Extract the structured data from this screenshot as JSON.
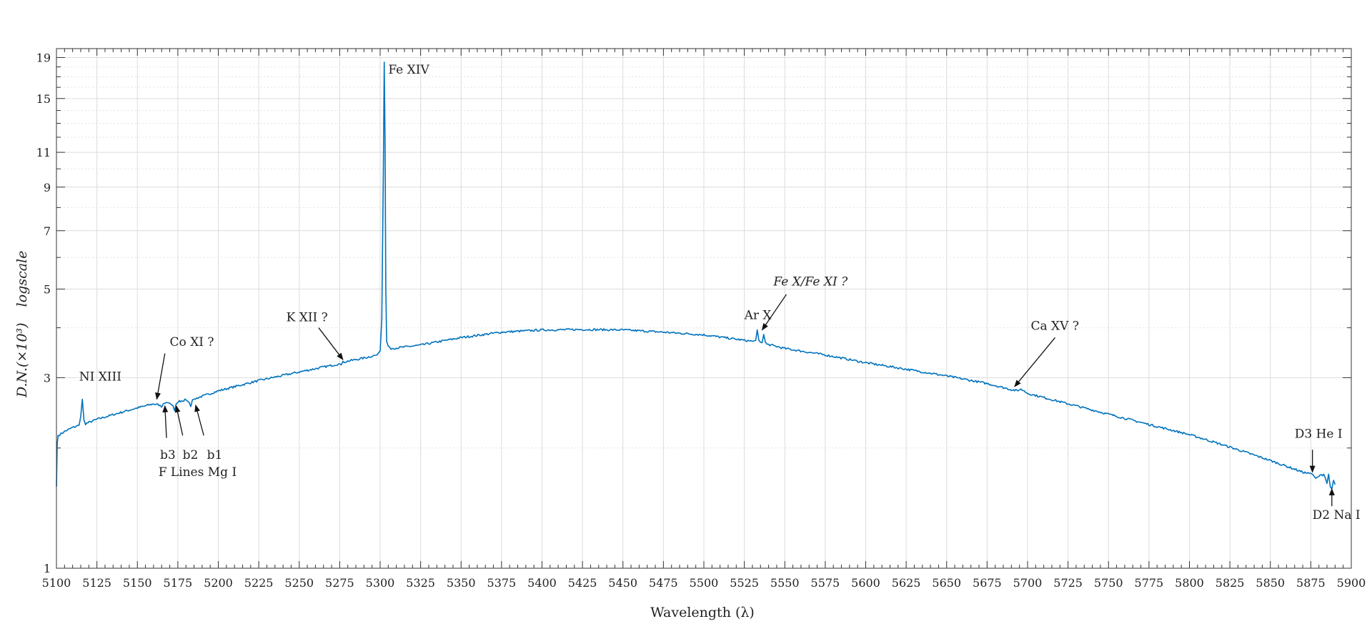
{
  "chart_data": {
    "type": "line",
    "title": "",
    "xlabel": "Wavelength (λ)",
    "ylabel": "D.N.(×10³)",
    "ylabel_secondary": "logscale",
    "x_scale": "linear",
    "y_scale": "log",
    "xlim": [
      5100,
      5900
    ],
    "ylim": [
      1,
      20
    ],
    "grid": true,
    "legend": "none",
    "color": "#0072BD",
    "x_ticks": [
      5100,
      5125,
      5150,
      5175,
      5200,
      5225,
      5250,
      5275,
      5300,
      5325,
      5350,
      5375,
      5400,
      5425,
      5450,
      5475,
      5500,
      5525,
      5550,
      5575,
      5600,
      5625,
      5650,
      5675,
      5700,
      5725,
      5750,
      5775,
      5800,
      5825,
      5850,
      5875,
      5900
    ],
    "y_ticks": [
      1,
      3,
      5,
      7,
      9,
      11,
      15,
      19
    ],
    "series": [
      {
        "x": [
          5100,
          5100.5,
          5101,
          5102,
          5105,
          5110,
          5114,
          5115,
          5116,
          5117,
          5118,
          5125,
          5150,
          5160,
          5164,
          5165,
          5166,
          5168,
          5170,
          5172,
          5173,
          5174,
          5176,
          5180,
          5182,
          5183,
          5184,
          5186,
          5200,
          5225,
          5250,
          5270,
          5275,
          5276,
          5277,
          5280,
          5290,
          5298,
          5300,
          5301,
          5302,
          5302.5,
          5303,
          5303.5,
          5304,
          5305,
          5306,
          5310,
          5325,
          5350,
          5375,
          5400,
          5425,
          5450,
          5475,
          5500,
          5525,
          5530,
          5532,
          5533,
          5534,
          5535,
          5536,
          5537,
          5538,
          5539,
          5540,
          5550,
          5575,
          5600,
          5625,
          5650,
          5675,
          5690,
          5694,
          5696,
          5700,
          5725,
          5750,
          5775,
          5800,
          5825,
          5850,
          5870,
          5876,
          5877,
          5878,
          5880,
          5883,
          5884,
          5885,
          5886,
          5887,
          5888,
          5889,
          5890
        ],
        "y": [
          1.6,
          2.05,
          2.15,
          2.16,
          2.2,
          2.25,
          2.28,
          2.4,
          2.65,
          2.35,
          2.3,
          2.36,
          2.52,
          2.58,
          2.56,
          2.53,
          2.58,
          2.6,
          2.59,
          2.55,
          2.48,
          2.58,
          2.62,
          2.64,
          2.6,
          2.54,
          2.64,
          2.66,
          2.78,
          2.95,
          3.1,
          3.22,
          3.25,
          3.23,
          3.28,
          3.3,
          3.36,
          3.42,
          3.5,
          4.2,
          10,
          18.5,
          12,
          5,
          3.7,
          3.6,
          3.55,
          3.56,
          3.62,
          3.78,
          3.9,
          3.95,
          3.96,
          3.95,
          3.9,
          3.84,
          3.72,
          3.7,
          3.72,
          3.95,
          3.72,
          3.68,
          3.67,
          3.85,
          3.68,
          3.64,
          3.63,
          3.55,
          3.42,
          3.27,
          3.15,
          3.03,
          2.9,
          2.8,
          2.78,
          2.81,
          2.74,
          2.58,
          2.43,
          2.29,
          2.16,
          2.01,
          1.86,
          1.74,
          1.72,
          1.7,
          1.68,
          1.7,
          1.72,
          1.68,
          1.63,
          1.72,
          1.6,
          1.58,
          1.66,
          1.62
        ]
      }
    ],
    "annotations": [
      {
        "text": "Fe XIV",
        "x": 5305,
        "y": 17.3,
        "italic": false
      },
      {
        "text": "NI XIII",
        "x": 5114,
        "y": 2.95,
        "italic": false
      },
      {
        "text": "Co XI ?",
        "x": 5170,
        "y": 3.6,
        "italic": false,
        "arrow": [
          5167,
          3.45,
          5162,
          2.65
        ]
      },
      {
        "text": "K XII ?",
        "x": 5242,
        "y": 4.15,
        "italic": false,
        "arrow": [
          5262,
          4.0,
          5277,
          3.33
        ]
      },
      {
        "text": "Ar X",
        "x": 5525,
        "y": 4.2,
        "italic": false
      },
      {
        "text": "Fe X/Fe XI ?",
        "x": 5543,
        "y": 5.1,
        "italic": true,
        "arrow": [
          5551,
          4.85,
          5536,
          3.95
        ]
      },
      {
        "text": "Ca XV ?",
        "x": 5702,
        "y": 3.95,
        "italic": false,
        "arrow": [
          5717,
          3.78,
          5692,
          2.85
        ]
      },
      {
        "text": "b3",
        "x": 5164,
        "y": 1.88,
        "italic": false,
        "arrow": [
          5168,
          2.12,
          5167,
          2.55
        ]
      },
      {
        "text": "b2",
        "x": 5178,
        "y": 1.88,
        "italic": false,
        "arrow": [
          5178,
          2.15,
          5174,
          2.55
        ]
      },
      {
        "text": "b1",
        "x": 5193,
        "y": 1.88,
        "italic": false,
        "arrow": [
          5191,
          2.15,
          5186,
          2.56
        ]
      },
      {
        "text": "F Lines Mg I",
        "x": 5163,
        "y": 1.7,
        "italic": false
      },
      {
        "text": "D3 He I",
        "x": 5865,
        "y": 2.12,
        "italic": false,
        "arrow": [
          5876,
          1.98,
          5876,
          1.74
        ]
      },
      {
        "text": "D2 Na I",
        "x": 5876,
        "y": 1.33,
        "italic": false,
        "arrow": [
          5888,
          1.43,
          5888,
          1.58
        ]
      }
    ]
  }
}
